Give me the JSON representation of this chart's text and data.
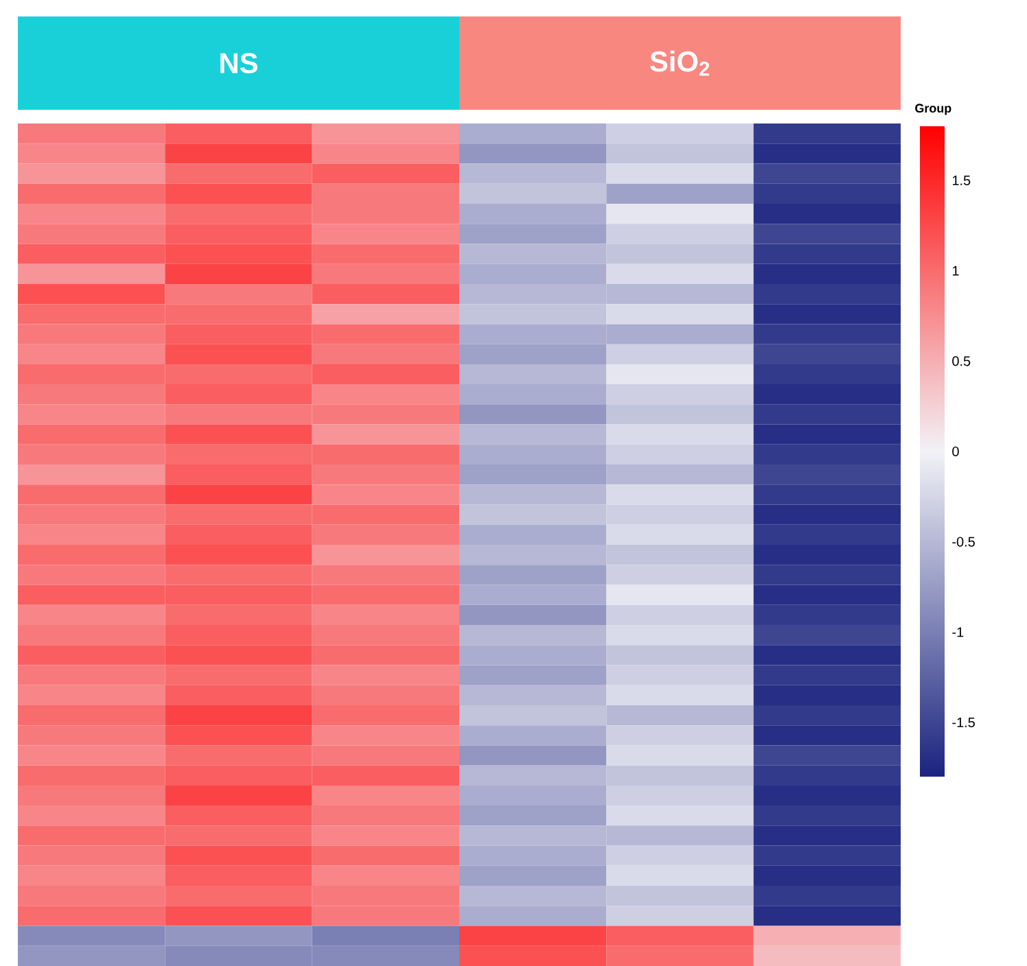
{
  "chart_data": [
    {
      "type": "heatmap",
      "clabel": "Group",
      "annotations": [
        "NS",
        "SiO$_{2}$"
      ],
      "categories": [
        null,
        null,
        null,
        null,
        null,
        null
      ],
      "clim": [
        -1.8,
        1.8
      ],
      "cticks": [
        -1.5,
        -1,
        -0.5,
        0,
        0.5,
        1,
        1.5
      ],
      "y_categories": [
        null,
        null,
        null,
        null,
        null,
        null,
        null,
        null,
        null,
        null,
        null,
        null,
        null,
        null,
        null,
        null,
        null,
        null,
        null,
        null,
        null,
        null,
        null,
        null,
        null,
        null,
        null,
        null,
        null,
        null,
        null,
        null,
        null,
        null,
        null,
        null,
        null,
        null,
        null,
        null,
        null,
        null
      ],
      "cells": [
        [
          0.9,
          1.1,
          0.7,
          -0.6,
          -0.3,
          -1.6
        ],
        [
          0.8,
          1.3,
          0.8,
          -0.8,
          -0.4,
          -1.7
        ],
        [
          0.7,
          1.0,
          1.1,
          -0.5,
          -0.2,
          -1.5
        ],
        [
          1.0,
          1.2,
          0.9,
          -0.4,
          -0.7,
          -1.6
        ],
        [
          0.8,
          1.0,
          0.9,
          -0.6,
          -0.1,
          -1.7
        ],
        [
          0.9,
          1.1,
          0.8,
          -0.7,
          -0.3,
          -1.5
        ],
        [
          1.1,
          1.2,
          1.0,
          -0.5,
          -0.4,
          -1.6
        ],
        [
          0.7,
          1.3,
          0.9,
          -0.6,
          -0.2,
          -1.7
        ],
        [
          1.2,
          0.9,
          1.1,
          -0.5,
          -0.5,
          -1.6
        ],
        [
          1.0,
          1.0,
          0.6,
          -0.4,
          -0.2,
          -1.7
        ],
        [
          0.9,
          1.1,
          1.0,
          -0.6,
          -0.6,
          -1.6
        ],
        [
          0.8,
          1.2,
          0.9,
          -0.7,
          -0.3,
          -1.5
        ],
        [
          1.0,
          1.0,
          1.1,
          -0.5,
          -0.1,
          -1.6
        ],
        [
          0.9,
          1.1,
          0.8,
          -0.6,
          -0.3,
          -1.7
        ],
        [
          0.8,
          0.9,
          0.9,
          -0.8,
          -0.4,
          -1.6
        ],
        [
          1.0,
          1.2,
          0.7,
          -0.5,
          -0.2,
          -1.7
        ],
        [
          0.9,
          1.0,
          1.0,
          -0.6,
          -0.3,
          -1.6
        ],
        [
          0.7,
          1.1,
          0.9,
          -0.7,
          -0.5,
          -1.5
        ],
        [
          1.0,
          1.3,
          0.8,
          -0.5,
          -0.2,
          -1.6
        ],
        [
          0.9,
          1.0,
          1.0,
          -0.4,
          -0.3,
          -1.7
        ],
        [
          0.8,
          1.1,
          0.9,
          -0.6,
          -0.2,
          -1.6
        ],
        [
          1.0,
          1.2,
          0.7,
          -0.5,
          -0.4,
          -1.7
        ],
        [
          0.9,
          1.0,
          0.9,
          -0.7,
          -0.3,
          -1.6
        ],
        [
          1.1,
          1.1,
          1.0,
          -0.6,
          -0.1,
          -1.7
        ],
        [
          0.8,
          1.0,
          0.8,
          -0.8,
          -0.3,
          -1.6
        ],
        [
          0.9,
          1.1,
          0.9,
          -0.5,
          -0.2,
          -1.5
        ],
        [
          1.1,
          1.2,
          1.0,
          -0.6,
          -0.4,
          -1.7
        ],
        [
          0.9,
          1.0,
          0.8,
          -0.7,
          -0.3,
          -1.6
        ],
        [
          0.8,
          1.1,
          0.9,
          -0.5,
          -0.2,
          -1.7
        ],
        [
          1.0,
          1.3,
          1.0,
          -0.4,
          -0.5,
          -1.6
        ],
        [
          0.9,
          1.2,
          0.8,
          -0.6,
          -0.3,
          -1.7
        ],
        [
          0.8,
          1.0,
          0.9,
          -0.8,
          -0.2,
          -1.5
        ],
        [
          1.0,
          1.1,
          1.1,
          -0.5,
          -0.4,
          -1.6
        ],
        [
          0.9,
          1.3,
          0.8,
          -0.6,
          -0.3,
          -1.7
        ],
        [
          0.8,
          1.1,
          0.9,
          -0.7,
          -0.2,
          -1.6
        ],
        [
          1.0,
          1.0,
          0.8,
          -0.5,
          -0.5,
          -1.7
        ],
        [
          0.9,
          1.2,
          1.0,
          -0.6,
          -0.3,
          -1.6
        ],
        [
          0.8,
          1.1,
          0.8,
          -0.7,
          -0.2,
          -1.7
        ],
        [
          0.9,
          1.0,
          0.9,
          -0.5,
          -0.4,
          -1.6
        ],
        [
          1.0,
          1.2,
          0.9,
          -0.6,
          -0.3,
          -1.7
        ],
        [
          -0.9,
          -0.8,
          -1.0,
          1.3,
          1.1,
          0.5
        ],
        [
          -0.8,
          -0.9,
          -0.9,
          1.2,
          1.0,
          0.4
        ]
      ]
    }
  ]
}
